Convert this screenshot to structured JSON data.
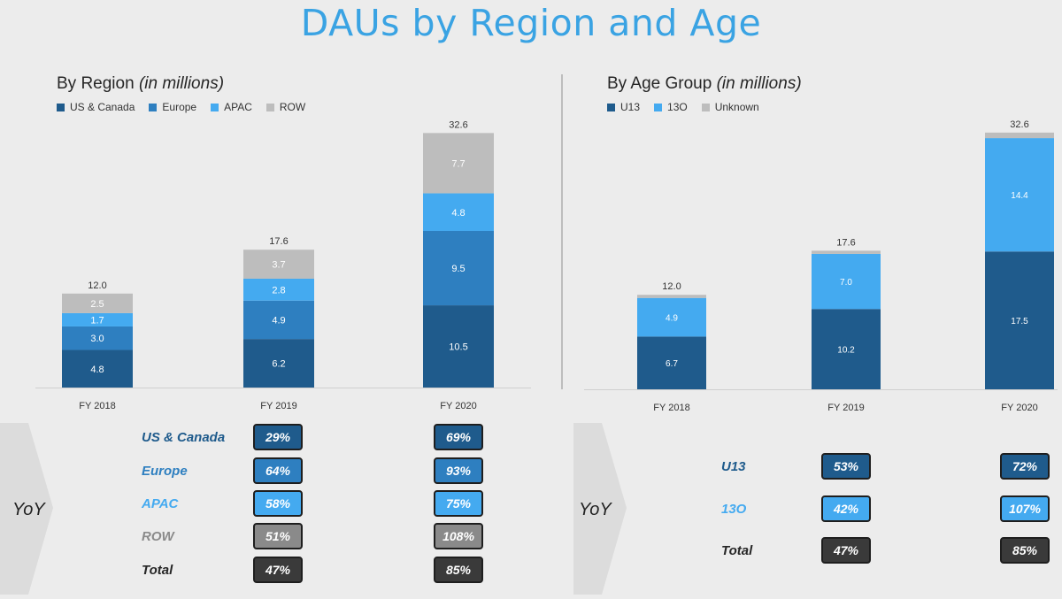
{
  "title": "DAUs by Region and Age",
  "colors": {
    "us_canada": "#1f5b8c",
    "europe": "#2e7fc0",
    "apac": "#44aaf0",
    "row": "#bdbdbd",
    "total": "#3a3a3a",
    "u13": "#1f5b8c",
    "age13o": "#44aaf0",
    "unknown": "#bdbdbd"
  },
  "chart_data": [
    {
      "type": "bar",
      "stacked": true,
      "title": "By Region",
      "title_note": "(in millions)",
      "categories": [
        "FY 2018",
        "FY 2019",
        "FY 2020"
      ],
      "series": [
        {
          "name": "US & Canada",
          "values": [
            4.8,
            6.2,
            10.5
          ]
        },
        {
          "name": "Europe",
          "values": [
            3.0,
            4.9,
            9.5
          ]
        },
        {
          "name": "APAC",
          "values": [
            1.7,
            2.8,
            4.8
          ]
        },
        {
          "name": "ROW",
          "values": [
            2.5,
            3.7,
            7.7
          ]
        }
      ],
      "totals": [
        "12.0",
        "17.6",
        "32.6"
      ],
      "legend": "top-left",
      "ylim": [
        0,
        32.6
      ]
    },
    {
      "type": "bar",
      "stacked": true,
      "title": "By Age Group",
      "title_note": "(in millions)",
      "categories": [
        "FY 2018",
        "FY 2019",
        "FY 2020"
      ],
      "series": [
        {
          "name": "U13",
          "values": [
            6.7,
            10.2,
            17.5
          ]
        },
        {
          "name": "13O",
          "values": [
            4.9,
            7.0,
            14.4
          ]
        },
        {
          "name": "Unknown",
          "values": [
            0.4,
            0.4,
            0.7
          ],
          "labels": [
            "",
            "",
            ""
          ]
        }
      ],
      "totals": [
        "12.0",
        "17.6",
        "32.6"
      ],
      "legend": "top-left",
      "ylim": [
        0,
        32.6
      ]
    }
  ],
  "yoy": {
    "label": "YoY",
    "region": {
      "rows": [
        {
          "name": "US & Canada",
          "fy2019": "29%",
          "fy2020": "69%"
        },
        {
          "name": "Europe",
          "fy2019": "64%",
          "fy2020": "93%"
        },
        {
          "name": "APAC",
          "fy2019": "58%",
          "fy2020": "75%"
        },
        {
          "name": "ROW",
          "fy2019": "51%",
          "fy2020": "108%"
        },
        {
          "name": "Total",
          "fy2019": "47%",
          "fy2020": "85%"
        }
      ]
    },
    "age": {
      "rows": [
        {
          "name": "U13",
          "fy2019": "53%",
          "fy2020": "72%"
        },
        {
          "name": "13O",
          "fy2019": "42%",
          "fy2020": "107%"
        },
        {
          "name": "Total",
          "fy2019": "47%",
          "fy2020": "85%"
        }
      ]
    }
  }
}
